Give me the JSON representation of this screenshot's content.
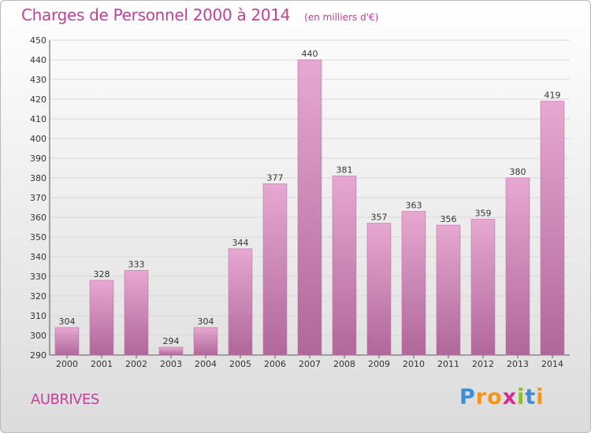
{
  "chart_data": {
    "type": "bar",
    "title": "Charges de Personnel 2000 à 2014",
    "subtitle": "(en milliers d'€)",
    "categories": [
      "2000",
      "2001",
      "2002",
      "2003",
      "2004",
      "2005",
      "2006",
      "2007",
      "2008",
      "2009",
      "2010",
      "2011",
      "2012",
      "2013",
      "2014"
    ],
    "values": [
      304,
      328,
      333,
      294,
      304,
      344,
      377,
      440,
      381,
      357,
      363,
      356,
      359,
      380,
      419
    ],
    "ylim": [
      290,
      450
    ],
    "yticks": [
      290,
      300,
      310,
      320,
      330,
      340,
      350,
      360,
      370,
      380,
      390,
      400,
      410,
      420,
      430,
      440,
      450
    ],
    "grid": true,
    "xlabel": "",
    "ylabel": ""
  },
  "location": "AUBRIVES",
  "logo": {
    "letters": [
      "P",
      "r",
      "o",
      "x",
      "i",
      "t",
      "i"
    ]
  },
  "colors": {
    "title": "#c2409a",
    "bar_light": "#e6a8d0",
    "bar_dark": "#b0679a",
    "bar_edge": "#c0709f",
    "logo_letters": [
      "#3c8fd6",
      "#f0961c",
      "#f0961c",
      "#d62b8c",
      "#8cbf26",
      "#3c8fd6",
      "#f0961c"
    ]
  }
}
